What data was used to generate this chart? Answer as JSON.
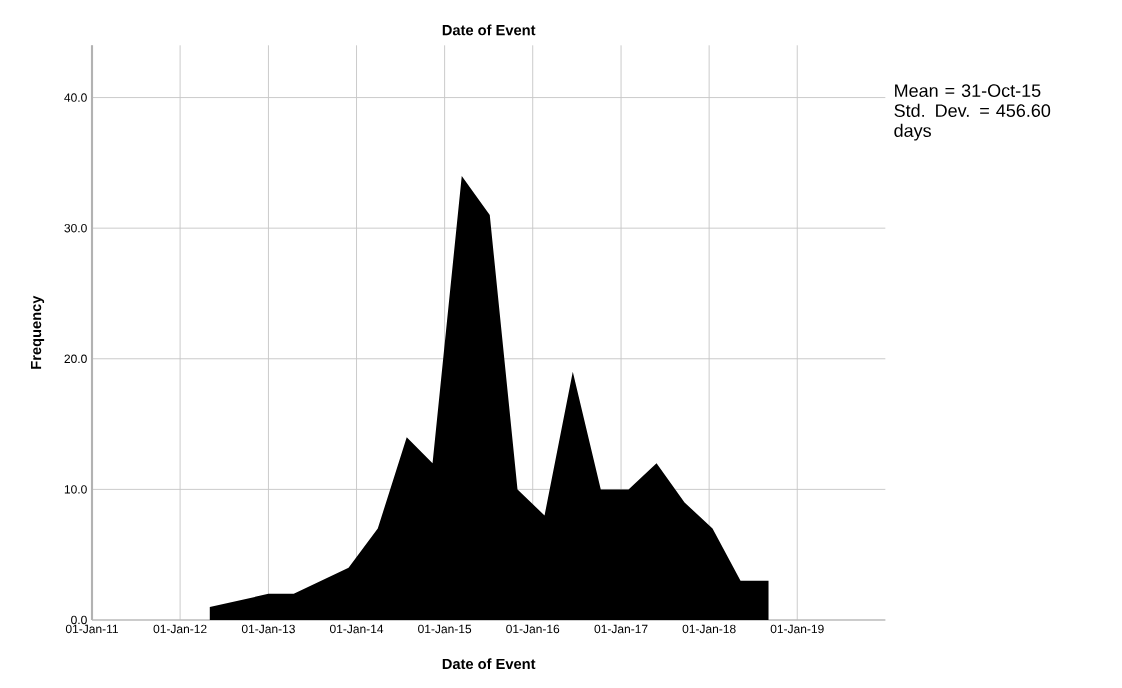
{
  "chart_data": {
    "type": "area",
    "title": "Date of Event",
    "xlabel": "Date of Event",
    "ylabel": "Frequency",
    "x": [
      "2012-05-03",
      "2013-01-01",
      "2013-04-16",
      "2013-11-29",
      "2014-03-30",
      "2014-07-28",
      "2014-11-12",
      "2015-03-13",
      "2015-07-07",
      "2015-10-30",
      "2016-02-19",
      "2016-06-15",
      "2016-10-09",
      "2017-02-01",
      "2017-05-28",
      "2017-09-21",
      "2018-01-15",
      "2018-05-11",
      "2018-09-04"
    ],
    "values": [
      1,
      2,
      2,
      4,
      7,
      14,
      12,
      34,
      31,
      10,
      8,
      19,
      10,
      10,
      12,
      9,
      7,
      3,
      3
    ],
    "color": "#000000",
    "xlim": [
      "2011-01-01",
      "2020-01-01"
    ],
    "xticks": [
      {
        "value": "2011-01-01",
        "label": "01-Jan-11"
      },
      {
        "value": "2012-01-01",
        "label": "01-Jan-12"
      },
      {
        "value": "2013-01-01",
        "label": "01-Jan-13"
      },
      {
        "value": "2014-01-01",
        "label": "01-Jan-14"
      },
      {
        "value": "2015-01-01",
        "label": "01-Jan-15"
      },
      {
        "value": "2016-01-01",
        "label": "01-Jan-16"
      },
      {
        "value": "2017-01-01",
        "label": "01-Jan-17"
      },
      {
        "value": "2018-01-01",
        "label": "01-Jan-18"
      },
      {
        "value": "2019-01-01",
        "label": "01-Jan-19"
      }
    ],
    "ylim": [
      0,
      44
    ],
    "yticks": [
      {
        "value": 0,
        "label": "0.0"
      },
      {
        "value": 10,
        "label": "10.0"
      },
      {
        "value": 20,
        "label": "20.0"
      },
      {
        "value": 30,
        "label": "30.0"
      },
      {
        "value": 40,
        "label": "40.0"
      }
    ],
    "grid": true,
    "annotations": [
      "Mean = 31-Oct-15",
      "Std. Dev. = 456.60 days"
    ]
  }
}
